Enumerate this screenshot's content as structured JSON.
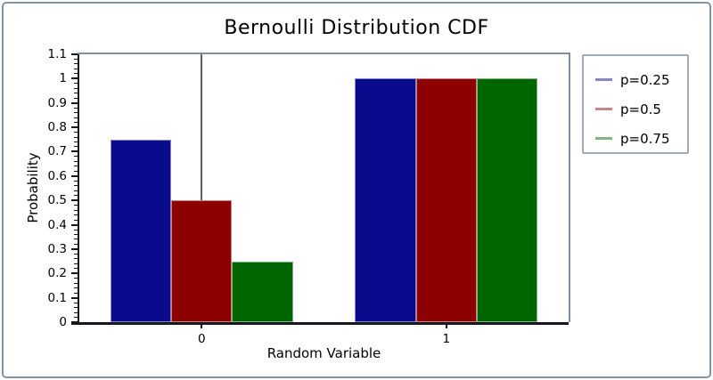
{
  "chart_data": {
    "type": "bar",
    "title": "Bernoulli Distribution CDF",
    "xlabel": "Random Variable",
    "ylabel": "Probability",
    "categories": [
      "0",
      "1"
    ],
    "series": [
      {
        "name": "p=0.25",
        "values": [
          0.75,
          1.0
        ],
        "bar_color": "#0a0a8c",
        "stroke_color": "#8585c8"
      },
      {
        "name": "p=0.5",
        "values": [
          0.5,
          1.0
        ],
        "bar_color": "#8c0000",
        "stroke_color": "#c88585"
      },
      {
        "name": "p=0.75",
        "values": [
          0.25,
          1.0
        ],
        "bar_color": "#006600",
        "stroke_color": "#85b385"
      }
    ],
    "ylim": [
      0,
      1.1
    ],
    "ytick_step": 0.1,
    "yminor_step": 0.02,
    "ytick_labels": [
      "0",
      "0.1",
      "0.2",
      "0.3",
      "0.4",
      "0.5",
      "0.6",
      "0.7",
      "0.8",
      "0.9",
      "1",
      "1.1"
    ],
    "zero_line_at_x_value": 0,
    "grid": false,
    "legend_position": "top-right"
  },
  "frame": {
    "border_color": "#8293a6"
  }
}
